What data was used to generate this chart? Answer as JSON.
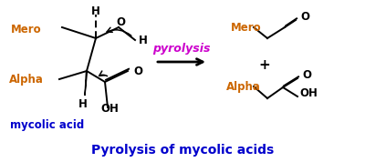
{
  "title": "Pyrolysis of mycolic acids",
  "title_color": "#0000cc",
  "title_fontsize": 10,
  "bg_color": "#ffffff",
  "pyrolysis_text": "pyrolysis",
  "pyrolysis_color": "#cc00cc",
  "mycolic_acid_text": "mycolic acid",
  "mycolic_acid_color": "#0000cc",
  "black": "#000000",
  "blue": "#0000cc",
  "orange": "#cc6600",
  "fig_width": 4.0,
  "fig_height": 1.78
}
